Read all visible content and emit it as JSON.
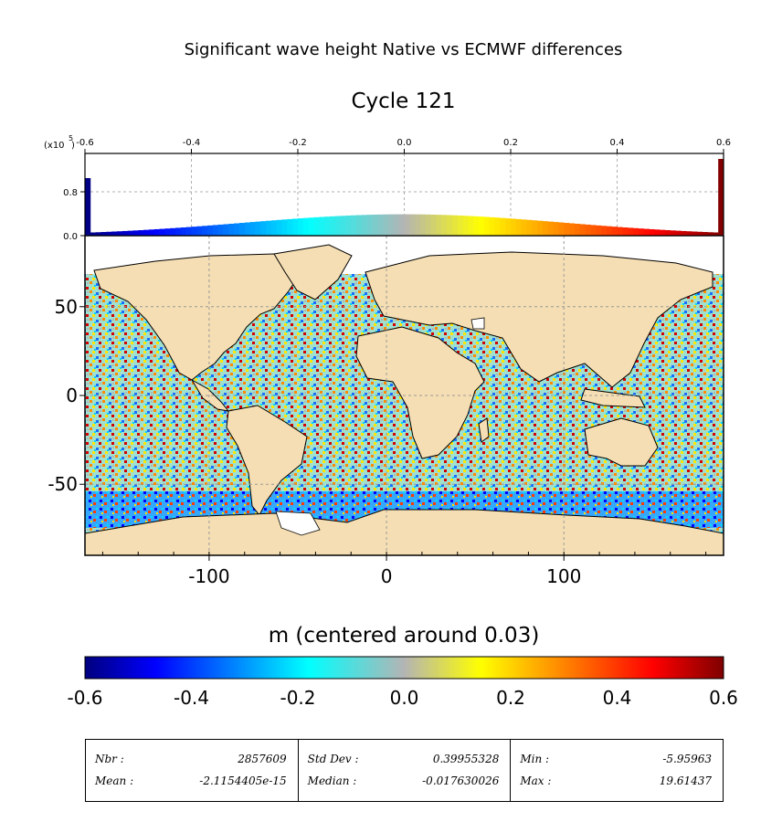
{
  "chart_data": [
    {
      "type": "histogram",
      "title": "",
      "x_range": [
        -0.6,
        0.6
      ],
      "x_ticks": [
        "-0.6",
        "-0.4",
        "-0.2",
        "0.0",
        "0.2",
        "0.4",
        "0.6"
      ],
      "y_ticks": [
        "0.0",
        "0.8"
      ],
      "y_scale_label": "(x10",
      "y_scale_exp": "5",
      "y_range": [
        0,
        1.5
      ],
      "bins_center_value": 0.39,
      "edge_bins": {
        "left": 1.05,
        "right": 1.4
      },
      "grid": true
    },
    {
      "type": "heatmap",
      "title": "Cycle 121",
      "x_range": [
        -170,
        190
      ],
      "y_range": [
        -90,
        90
      ],
      "x_ticks": [
        "-100",
        "0",
        "100"
      ],
      "y_ticks": [
        "50",
        "0",
        "-50"
      ],
      "grid": true,
      "colorbar": {
        "label": "m (centered around 0.03)",
        "range": [
          -0.6,
          0.6
        ],
        "ticks": [
          "-0.6",
          "-0.4",
          "-0.2",
          "0.0",
          "0.2",
          "0.4",
          "0.6"
        ]
      }
    }
  ],
  "suptitle": "Significant wave height Native vs ECMWF differences",
  "stats": [
    {
      "label": "Nbr :",
      "value": "2857609",
      "label2": "Mean :",
      "value2": "-2.1154405e-15"
    },
    {
      "label": "Std Dev :",
      "value": "0.39955328",
      "label2": "Median :",
      "value2": "-0.017630026"
    },
    {
      "label": "Min :",
      "value": "-5.95963",
      "label2": "Max :",
      "value2": "19.61437"
    }
  ],
  "colors": {
    "land": "#f5deb3",
    "ocean_bg": "#ffffff"
  }
}
